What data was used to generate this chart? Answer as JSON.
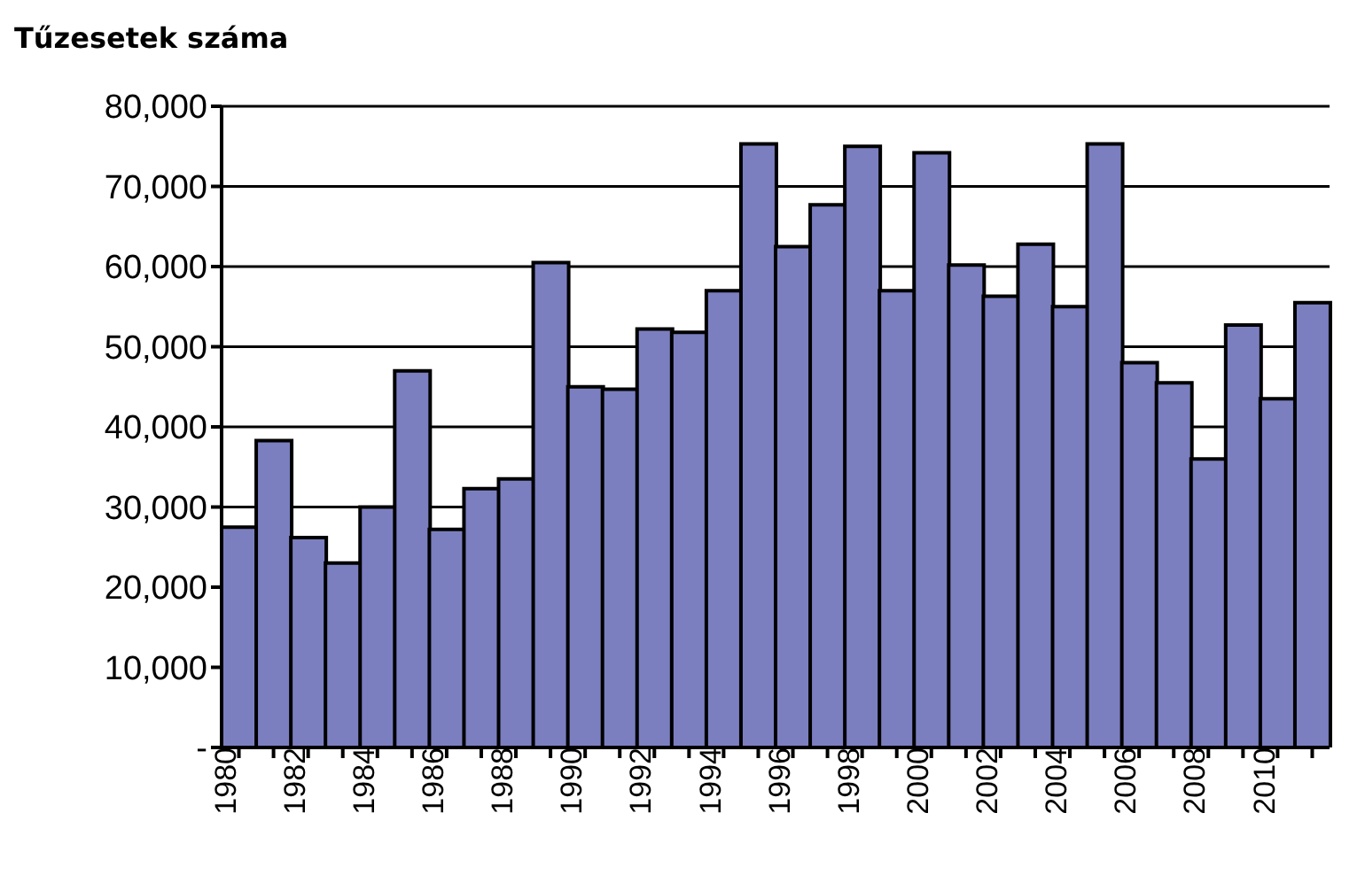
{
  "chart_data": {
    "type": "bar",
    "title": "Tűzesetek száma",
    "categories": [
      "1980",
      null,
      "1982",
      null,
      "1984",
      null,
      "1986",
      null,
      "1988",
      null,
      "1990",
      null,
      "1992",
      null,
      "1994",
      null,
      "1996",
      null,
      "1998",
      null,
      "2000",
      null,
      "2002",
      null,
      "2004",
      null,
      "2006",
      null,
      "2008",
      null,
      "2010",
      null
    ],
    "values": [
      27500,
      38300,
      26200,
      23000,
      30000,
      47000,
      27200,
      32300,
      33500,
      60500,
      45000,
      44700,
      52200,
      51800,
      57000,
      75300,
      62500,
      67700,
      75000,
      57000,
      74200,
      60200,
      56300,
      62800,
      55000,
      75300,
      48000,
      45500,
      36000,
      52700,
      43500,
      55500
    ],
    "color": "#7b7fc0",
    "ylim": [
      0,
      80000
    ],
    "yticks": [
      {
        "value": 0,
        "label": "-"
      },
      {
        "value": 10000,
        "label": "10,000"
      },
      {
        "value": 20000,
        "label": "20,000"
      },
      {
        "value": 30000,
        "label": "30,000"
      },
      {
        "value": 40000,
        "label": "40,000"
      },
      {
        "value": 50000,
        "label": "50,000"
      },
      {
        "value": 60000,
        "label": "60,000"
      },
      {
        "value": 70000,
        "label": "70,000"
      },
      {
        "value": 80000,
        "label": "80,000"
      }
    ],
    "grid": "y"
  }
}
